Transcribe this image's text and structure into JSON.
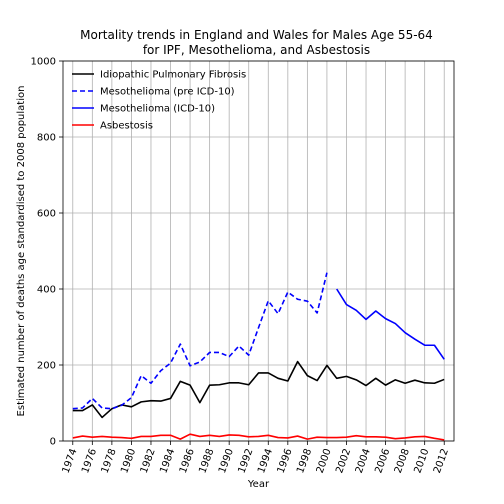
{
  "chart_data": {
    "type": "line",
    "title_lines": [
      "Mortality trends in England and Wales for Males Age 55-64",
      "for IPF, Mesothelioma, and Asbestosis"
    ],
    "xlabel": "Year",
    "ylabel": "Estimated number of deaths age standardised to 2008 population",
    "xlim": [
      1973,
      2013
    ],
    "ylim": [
      0,
      1000
    ],
    "xticks": [
      "1974",
      "1976",
      "1978",
      "1980",
      "1982",
      "1984",
      "1986",
      "1988",
      "1990",
      "1992",
      "1994",
      "1996",
      "1998",
      "2000",
      "2002",
      "2004",
      "2006",
      "2008",
      "2010",
      "2012"
    ],
    "yticks": [
      "0",
      "200",
      "400",
      "600",
      "800",
      "1000"
    ],
    "grid": true,
    "legend_position": "top-left",
    "series": [
      {
        "name": "Idiopathic Pulmonary Fibrosis",
        "color": "#000000",
        "dash": "solid",
        "x": [
          1974,
          1975,
          1976,
          1977,
          1978,
          1979,
          1980,
          1981,
          1982,
          1983,
          1984,
          1985,
          1986,
          1987,
          1988,
          1989,
          1990,
          1991,
          1992,
          1993,
          1994,
          1995,
          1996,
          1997,
          1998,
          1999,
          2000,
          2001,
          2002,
          2003,
          2004,
          2005,
          2006,
          2007,
          2008,
          2009,
          2010,
          2011,
          2012
        ],
        "y": [
          80,
          80,
          95,
          62,
          85,
          95,
          90,
          103,
          106,
          105,
          112,
          157,
          147,
          101,
          147,
          148,
          153,
          153,
          148,
          179,
          179,
          165,
          158,
          209,
          172,
          159,
          199,
          165,
          170,
          161,
          146,
          165,
          147,
          161,
          152,
          160,
          153,
          152,
          162
        ]
      },
      {
        "name": "Mesothelioma (pre ICD-10)",
        "color": "#0000ff",
        "dash": "dashed",
        "x": [
          1974,
          1975,
          1976,
          1977,
          1978,
          1979,
          1980,
          1981,
          1982,
          1983,
          1984,
          1985,
          1986,
          1987,
          1988,
          1989,
          1990,
          1991,
          1992,
          1993,
          1994,
          1995,
          1996,
          1997,
          1998,
          1999,
          2000
        ],
        "y": [
          85,
          87,
          112,
          87,
          85,
          94,
          114,
          172,
          152,
          185,
          205,
          255,
          198,
          208,
          233,
          233,
          222,
          250,
          226,
          298,
          369,
          335,
          392,
          373,
          368,
          337,
          443
        ]
      },
      {
        "name": "Mesothelioma (ICD-10)",
        "color": "#0000ff",
        "dash": "solid",
        "x": [
          2001,
          2002,
          2003,
          2004,
          2005,
          2006,
          2007,
          2008,
          2009,
          2010,
          2011,
          2012
        ],
        "y": [
          400,
          359,
          344,
          320,
          342,
          322,
          309,
          285,
          268,
          252,
          252,
          215
        ]
      },
      {
        "name": "Asbestosis",
        "color": "#ff0000",
        "dash": "solid",
        "x": [
          1974,
          1975,
          1976,
          1977,
          1978,
          1979,
          1980,
          1981,
          1982,
          1983,
          1984,
          1985,
          1986,
          1987,
          1988,
          1989,
          1990,
          1991,
          1992,
          1993,
          1994,
          1995,
          1996,
          1997,
          1998,
          1999,
          2000,
          2001,
          2002,
          2003,
          2004,
          2005,
          2006,
          2007,
          2008,
          2009,
          2010,
          2011,
          2012
        ],
        "y": [
          8,
          13,
          10,
          12,
          10,
          9,
          7,
          12,
          12,
          15,
          15,
          5,
          18,
          12,
          15,
          12,
          16,
          15,
          11,
          12,
          15,
          9,
          8,
          13,
          5,
          10,
          9,
          9,
          10,
          14,
          11,
          11,
          10,
          6,
          8,
          11,
          12,
          7,
          3
        ]
      }
    ]
  }
}
